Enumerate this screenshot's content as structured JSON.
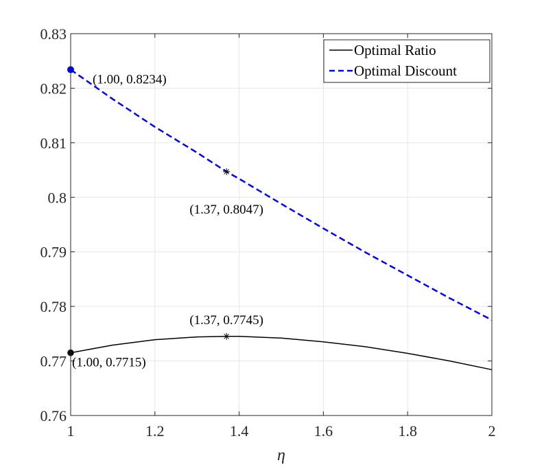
{
  "chart_data": {
    "type": "line",
    "title": "",
    "xlabel": "η",
    "ylabel": "",
    "xlim": [
      1,
      2
    ],
    "ylim": [
      0.76,
      0.83
    ],
    "grid": true,
    "xticks": [
      1,
      1.2,
      1.4,
      1.6,
      1.8,
      2
    ],
    "xtick_labels": [
      "1",
      "1.2",
      "1.4",
      "1.6",
      "1.8",
      "2"
    ],
    "yticks": [
      0.76,
      0.77,
      0.78,
      0.79,
      0.8,
      0.81,
      0.82,
      0.83
    ],
    "ytick_labels": [
      "0.76",
      "0.77",
      "0.78",
      "0.79",
      "0.8",
      "0.81",
      "0.82",
      "0.83"
    ],
    "legend_position": "top-right",
    "series": [
      {
        "name": "Optimal Ratio",
        "color": "#000000",
        "style": "solid",
        "x": [
          1.0,
          1.1,
          1.2,
          1.3,
          1.37,
          1.4,
          1.5,
          1.6,
          1.7,
          1.8,
          1.9,
          2.0
        ],
        "y": [
          0.7715,
          0.7729,
          0.7739,
          0.7744,
          0.7745,
          0.7745,
          0.7742,
          0.7735,
          0.7726,
          0.7714,
          0.77,
          0.7684
        ]
      },
      {
        "name": "Optimal Discount",
        "color": "#0000ff",
        "style": "dashed",
        "x": [
          1.0,
          1.1,
          1.2,
          1.3,
          1.37,
          1.4,
          1.5,
          1.6,
          1.7,
          1.8,
          1.9,
          2.0
        ],
        "y": [
          0.8234,
          0.818,
          0.8129,
          0.8082,
          0.8047,
          0.8034,
          0.7988,
          0.7943,
          0.7899,
          0.7857,
          0.7815,
          0.7775
        ]
      }
    ],
    "markers": [
      {
        "series": 1,
        "x": 1.0,
        "y": 0.8234,
        "shape": "dot",
        "color": "#0000ff",
        "label": "(1.00, 0.8234)",
        "label_side": "right-below"
      },
      {
        "series": 1,
        "x": 1.37,
        "y": 0.8047,
        "shape": "star",
        "color": "#000000",
        "label": "(1.37, 0.8047)",
        "label_side": "below"
      },
      {
        "series": 0,
        "x": 1.37,
        "y": 0.7745,
        "shape": "star",
        "color": "#000000",
        "label": "(1.37, 0.7745)",
        "label_side": "above"
      },
      {
        "series": 0,
        "x": 1.0,
        "y": 0.7715,
        "shape": "dot",
        "color": "#000000",
        "label": "(1.00, 0.7715)",
        "label_side": "right-below"
      }
    ]
  }
}
